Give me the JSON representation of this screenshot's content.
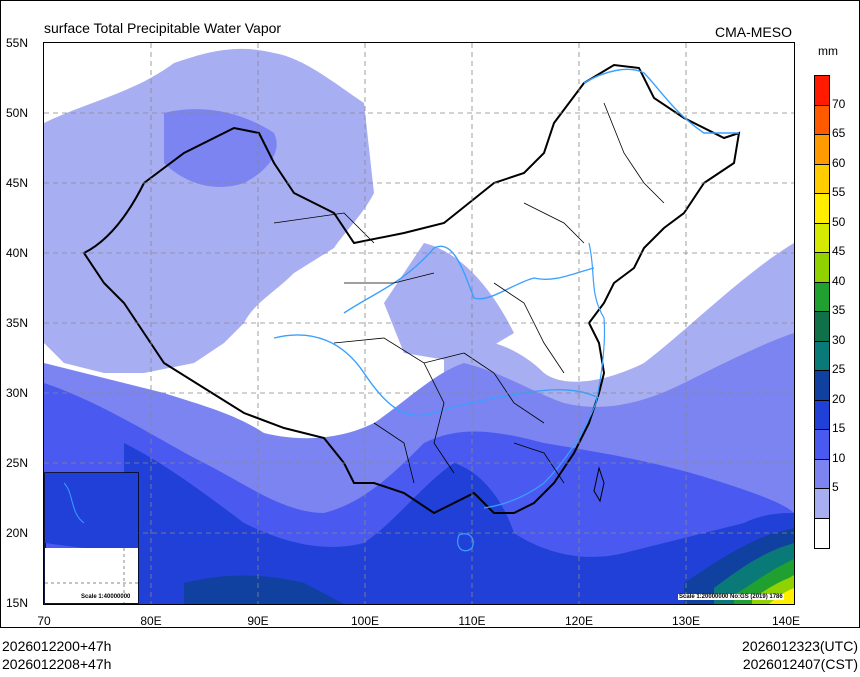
{
  "header": {
    "title": "surface Total Precipitable Water Vapor",
    "source": "CMA-MESO"
  },
  "axes": {
    "lat_labels": [
      "55N",
      "50N",
      "45N",
      "40N",
      "35N",
      "30N",
      "25N",
      "20N",
      "15N"
    ],
    "lon_labels": [
      "70",
      "80E",
      "90E",
      "100E",
      "110E",
      "120E",
      "130E",
      "140E"
    ],
    "lat_values": [
      55,
      50,
      45,
      40,
      35,
      30,
      25,
      20,
      15
    ],
    "lon_values": [
      70,
      80,
      90,
      100,
      110,
      120,
      130,
      140
    ]
  },
  "legend": {
    "units": "mm",
    "labels": [
      "70",
      "65",
      "60",
      "55",
      "50",
      "45",
      "40",
      "35",
      "30",
      "25",
      "20",
      "15",
      "10",
      "5"
    ],
    "colors": [
      "#ff1a00",
      "#ff5a00",
      "#ff9a00",
      "#ffcc00",
      "#ffee00",
      "#d4ea00",
      "#8fd200",
      "#20a030",
      "#10704a",
      "#0a7a78",
      "#1040a0",
      "#2040d8",
      "#4a5af0",
      "#7b84f0",
      "#a8aef2",
      "#ffffff"
    ]
  },
  "footer": {
    "init_utc": "2026012200+47h",
    "init_cst": "2026012208+47h",
    "valid_utc": "2026012323(UTC)",
    "valid_cst": "2026012407(CST)"
  },
  "notes": {
    "inset_scale": "Scale 1:40000000",
    "main_scale": "Scale 1:20000000 No:GS (2019) 1786"
  }
}
